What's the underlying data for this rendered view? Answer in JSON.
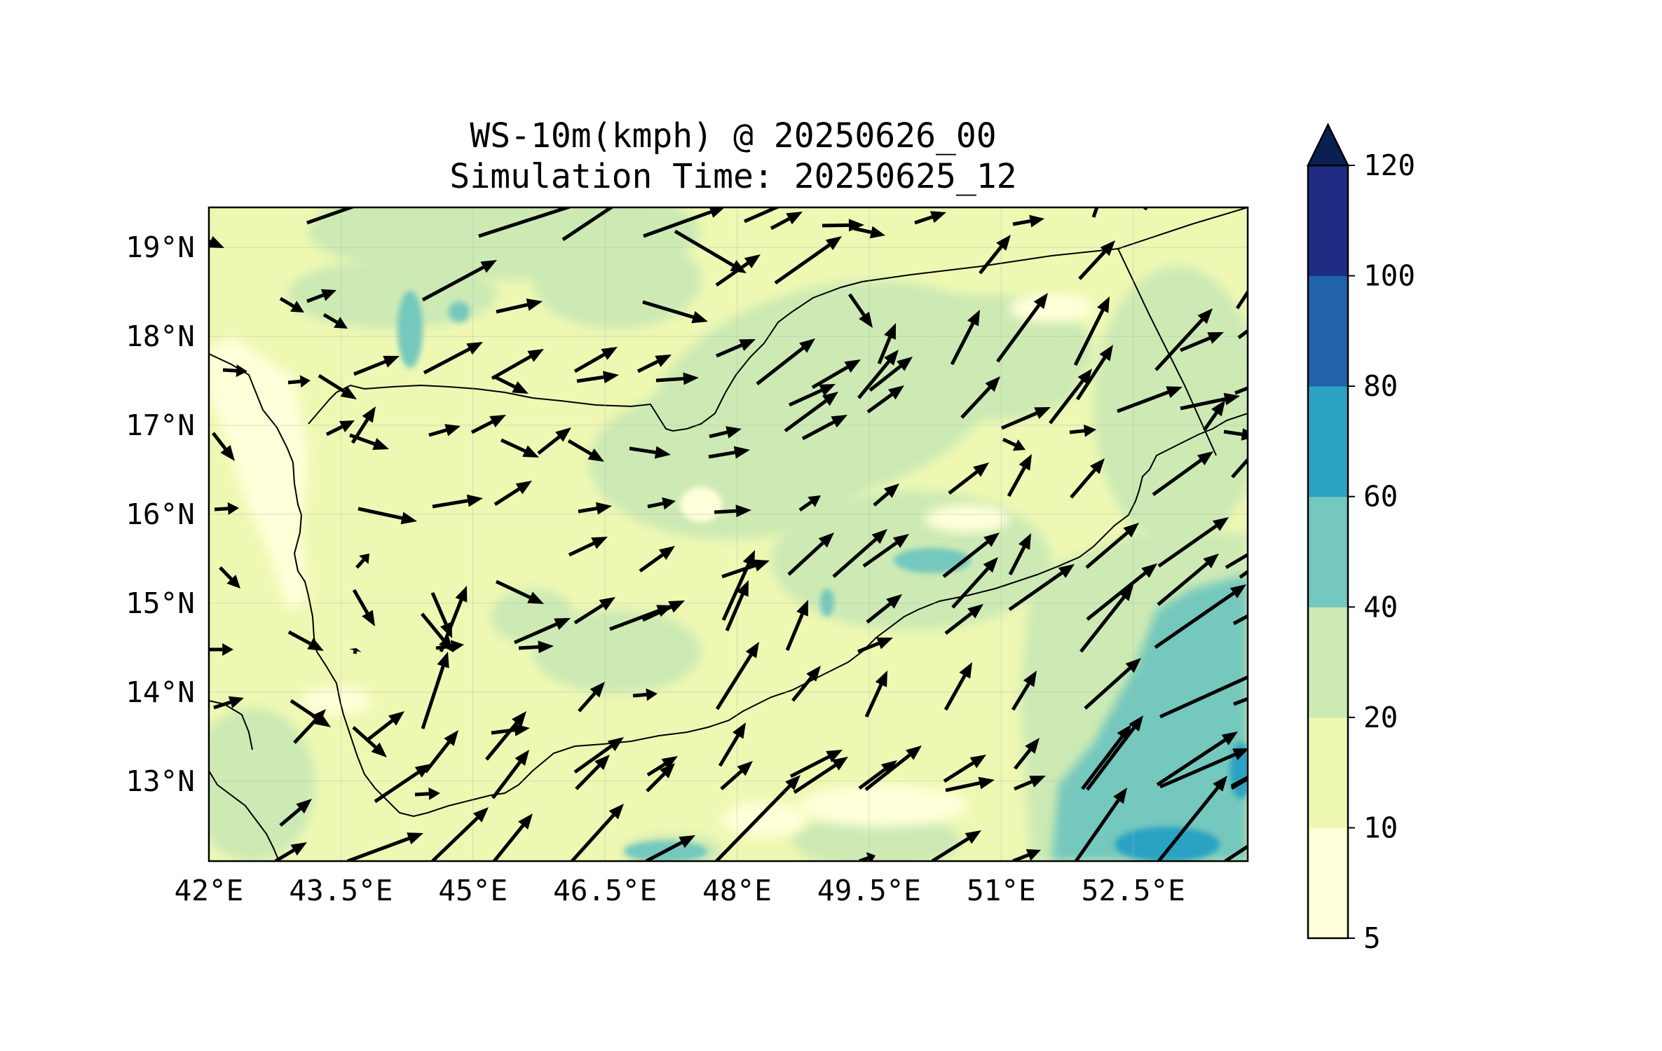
{
  "title": {
    "line1": "WS-10m(kmph) @ 20250626_00",
    "line2": "Simulation Time: 20250625_12"
  },
  "map": {
    "lon_range": [
      42.0,
      53.8
    ],
    "lat_range": [
      12.1,
      19.45
    ],
    "lon_ticks": [
      "42°E",
      "43.5°E",
      "45°E",
      "46.5°E",
      "48°E",
      "49.5°E",
      "51°E",
      "52.5°E"
    ],
    "lat_ticks": [
      "19°N",
      "18°N",
      "17°N",
      "16°N",
      "15°N",
      "14°N",
      "13°N"
    ],
    "quiver": "wind vectors (arrows)"
  },
  "colorbar": {
    "levels": [
      "5",
      "10",
      "20",
      "40",
      "60",
      "80",
      "100",
      "120"
    ],
    "colors": [
      "#ffffd9",
      "#eef8b3",
      "#cdeab4",
      "#74c8bd",
      "#2ba2c3",
      "#2163ab",
      "#1e2c84"
    ],
    "extend_color": "#0b1f52",
    "extend": "max"
  }
}
